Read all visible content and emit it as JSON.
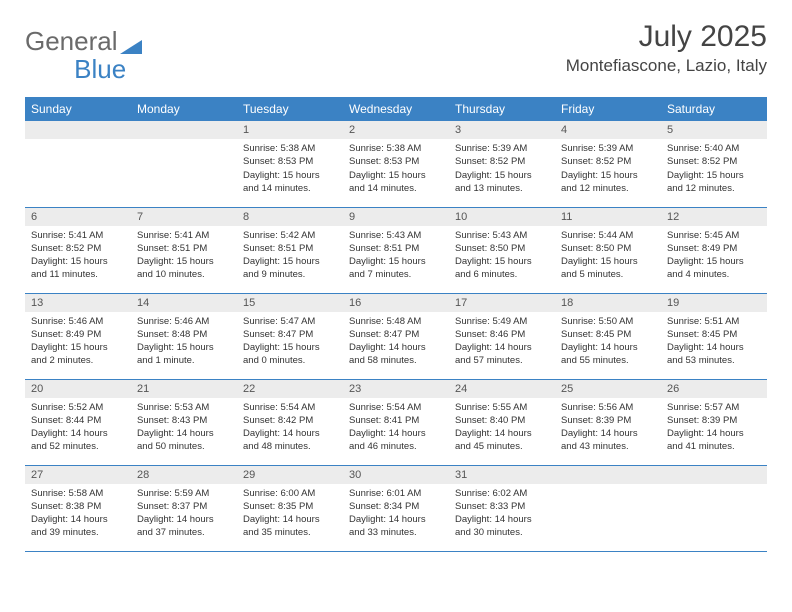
{
  "logo": {
    "general": "General",
    "blue": "Blue"
  },
  "title": "July 2025",
  "location": "Montefiascone, Lazio, Italy",
  "colors": {
    "header_bg": "#3b82c4",
    "header_text": "#ffffff",
    "daynum_bg": "#ececec",
    "border": "#3b82c4",
    "body_text": "#333333",
    "logo_gray": "#6a6a6a",
    "logo_blue": "#3b82c4"
  },
  "weekdays": [
    "Sunday",
    "Monday",
    "Tuesday",
    "Wednesday",
    "Thursday",
    "Friday",
    "Saturday"
  ],
  "weeks": [
    [
      null,
      null,
      {
        "n": "1",
        "sr": "Sunrise: 5:38 AM",
        "ss": "Sunset: 8:53 PM",
        "dl": "Daylight: 15 hours and 14 minutes."
      },
      {
        "n": "2",
        "sr": "Sunrise: 5:38 AM",
        "ss": "Sunset: 8:53 PM",
        "dl": "Daylight: 15 hours and 14 minutes."
      },
      {
        "n": "3",
        "sr": "Sunrise: 5:39 AM",
        "ss": "Sunset: 8:52 PM",
        "dl": "Daylight: 15 hours and 13 minutes."
      },
      {
        "n": "4",
        "sr": "Sunrise: 5:39 AM",
        "ss": "Sunset: 8:52 PM",
        "dl": "Daylight: 15 hours and 12 minutes."
      },
      {
        "n": "5",
        "sr": "Sunrise: 5:40 AM",
        "ss": "Sunset: 8:52 PM",
        "dl": "Daylight: 15 hours and 12 minutes."
      }
    ],
    [
      {
        "n": "6",
        "sr": "Sunrise: 5:41 AM",
        "ss": "Sunset: 8:52 PM",
        "dl": "Daylight: 15 hours and 11 minutes."
      },
      {
        "n": "7",
        "sr": "Sunrise: 5:41 AM",
        "ss": "Sunset: 8:51 PM",
        "dl": "Daylight: 15 hours and 10 minutes."
      },
      {
        "n": "8",
        "sr": "Sunrise: 5:42 AM",
        "ss": "Sunset: 8:51 PM",
        "dl": "Daylight: 15 hours and 9 minutes."
      },
      {
        "n": "9",
        "sr": "Sunrise: 5:43 AM",
        "ss": "Sunset: 8:51 PM",
        "dl": "Daylight: 15 hours and 7 minutes."
      },
      {
        "n": "10",
        "sr": "Sunrise: 5:43 AM",
        "ss": "Sunset: 8:50 PM",
        "dl": "Daylight: 15 hours and 6 minutes."
      },
      {
        "n": "11",
        "sr": "Sunrise: 5:44 AM",
        "ss": "Sunset: 8:50 PM",
        "dl": "Daylight: 15 hours and 5 minutes."
      },
      {
        "n": "12",
        "sr": "Sunrise: 5:45 AM",
        "ss": "Sunset: 8:49 PM",
        "dl": "Daylight: 15 hours and 4 minutes."
      }
    ],
    [
      {
        "n": "13",
        "sr": "Sunrise: 5:46 AM",
        "ss": "Sunset: 8:49 PM",
        "dl": "Daylight: 15 hours and 2 minutes."
      },
      {
        "n": "14",
        "sr": "Sunrise: 5:46 AM",
        "ss": "Sunset: 8:48 PM",
        "dl": "Daylight: 15 hours and 1 minute."
      },
      {
        "n": "15",
        "sr": "Sunrise: 5:47 AM",
        "ss": "Sunset: 8:47 PM",
        "dl": "Daylight: 15 hours and 0 minutes."
      },
      {
        "n": "16",
        "sr": "Sunrise: 5:48 AM",
        "ss": "Sunset: 8:47 PM",
        "dl": "Daylight: 14 hours and 58 minutes."
      },
      {
        "n": "17",
        "sr": "Sunrise: 5:49 AM",
        "ss": "Sunset: 8:46 PM",
        "dl": "Daylight: 14 hours and 57 minutes."
      },
      {
        "n": "18",
        "sr": "Sunrise: 5:50 AM",
        "ss": "Sunset: 8:45 PM",
        "dl": "Daylight: 14 hours and 55 minutes."
      },
      {
        "n": "19",
        "sr": "Sunrise: 5:51 AM",
        "ss": "Sunset: 8:45 PM",
        "dl": "Daylight: 14 hours and 53 minutes."
      }
    ],
    [
      {
        "n": "20",
        "sr": "Sunrise: 5:52 AM",
        "ss": "Sunset: 8:44 PM",
        "dl": "Daylight: 14 hours and 52 minutes."
      },
      {
        "n": "21",
        "sr": "Sunrise: 5:53 AM",
        "ss": "Sunset: 8:43 PM",
        "dl": "Daylight: 14 hours and 50 minutes."
      },
      {
        "n": "22",
        "sr": "Sunrise: 5:54 AM",
        "ss": "Sunset: 8:42 PM",
        "dl": "Daylight: 14 hours and 48 minutes."
      },
      {
        "n": "23",
        "sr": "Sunrise: 5:54 AM",
        "ss": "Sunset: 8:41 PM",
        "dl": "Daylight: 14 hours and 46 minutes."
      },
      {
        "n": "24",
        "sr": "Sunrise: 5:55 AM",
        "ss": "Sunset: 8:40 PM",
        "dl": "Daylight: 14 hours and 45 minutes."
      },
      {
        "n": "25",
        "sr": "Sunrise: 5:56 AM",
        "ss": "Sunset: 8:39 PM",
        "dl": "Daylight: 14 hours and 43 minutes."
      },
      {
        "n": "26",
        "sr": "Sunrise: 5:57 AM",
        "ss": "Sunset: 8:39 PM",
        "dl": "Daylight: 14 hours and 41 minutes."
      }
    ],
    [
      {
        "n": "27",
        "sr": "Sunrise: 5:58 AM",
        "ss": "Sunset: 8:38 PM",
        "dl": "Daylight: 14 hours and 39 minutes."
      },
      {
        "n": "28",
        "sr": "Sunrise: 5:59 AM",
        "ss": "Sunset: 8:37 PM",
        "dl": "Daylight: 14 hours and 37 minutes."
      },
      {
        "n": "29",
        "sr": "Sunrise: 6:00 AM",
        "ss": "Sunset: 8:35 PM",
        "dl": "Daylight: 14 hours and 35 minutes."
      },
      {
        "n": "30",
        "sr": "Sunrise: 6:01 AM",
        "ss": "Sunset: 8:34 PM",
        "dl": "Daylight: 14 hours and 33 minutes."
      },
      {
        "n": "31",
        "sr": "Sunrise: 6:02 AM",
        "ss": "Sunset: 8:33 PM",
        "dl": "Daylight: 14 hours and 30 minutes."
      },
      null,
      null
    ]
  ]
}
